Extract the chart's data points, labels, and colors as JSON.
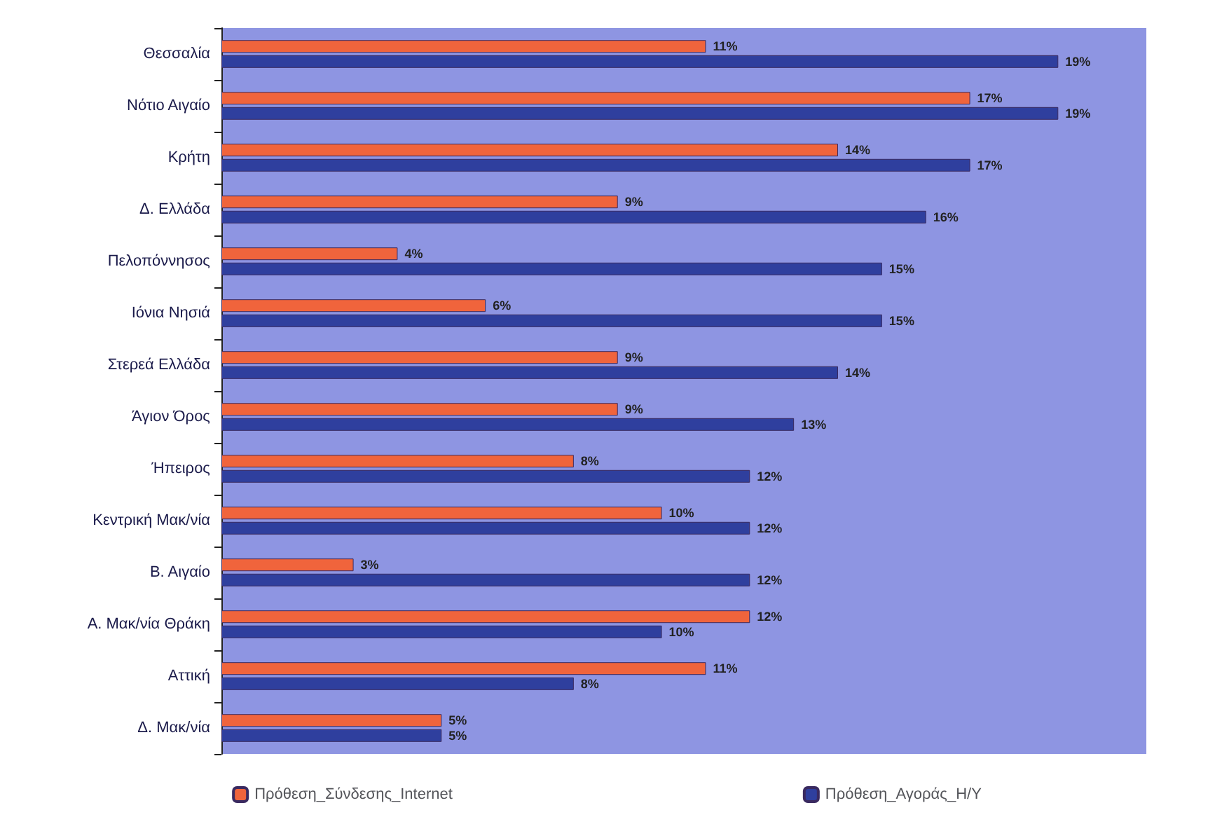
{
  "chart_data": {
    "type": "bar",
    "orientation": "horizontal",
    "data_labels": true,
    "legend": "bottom",
    "grid": false,
    "categories": [
      "Θεσσαλία",
      "Νότιο Αιγαίο",
      "Κρήτη",
      "Δ. Ελλάδα",
      "Πελοπόννησος",
      "Ιόνια Νησιά",
      "Στερεά Ελλάδα",
      "Άγιον Όρος",
      "Ήπειρος",
      "Κεντρική Μακ/νία",
      "Β. Αιγαίο",
      "Α. Μακ/νία Θράκη",
      "Αττική",
      "Δ. Μακ/νία"
    ],
    "series": [
      {
        "name": "Πρόθεση_Σύνδεσης_Internet",
        "color": "#f0643c",
        "values": [
          11,
          17,
          14,
          9,
          4,
          6,
          9,
          9,
          8,
          10,
          3,
          12,
          11,
          5
        ],
        "value_labels": [
          "11%",
          "17%",
          "14%",
          "9%",
          "4%",
          "6%",
          "9%",
          "9%",
          "8%",
          "10%",
          "3%",
          "12%",
          "11%",
          "5%"
        ]
      },
      {
        "name": "Πρόθεση_Αγοράς_Η/Υ",
        "color": "#2f3f9e",
        "values": [
          19,
          19,
          17,
          16,
          15,
          15,
          14,
          13,
          12,
          12,
          12,
          10,
          8,
          5
        ],
        "value_labels": [
          "19%",
          "19%",
          "17%",
          "16%",
          "15%",
          "15%",
          "14%",
          "13%",
          "12%",
          "12%",
          "12%",
          "10%",
          "8%",
          "5%"
        ]
      }
    ]
  }
}
